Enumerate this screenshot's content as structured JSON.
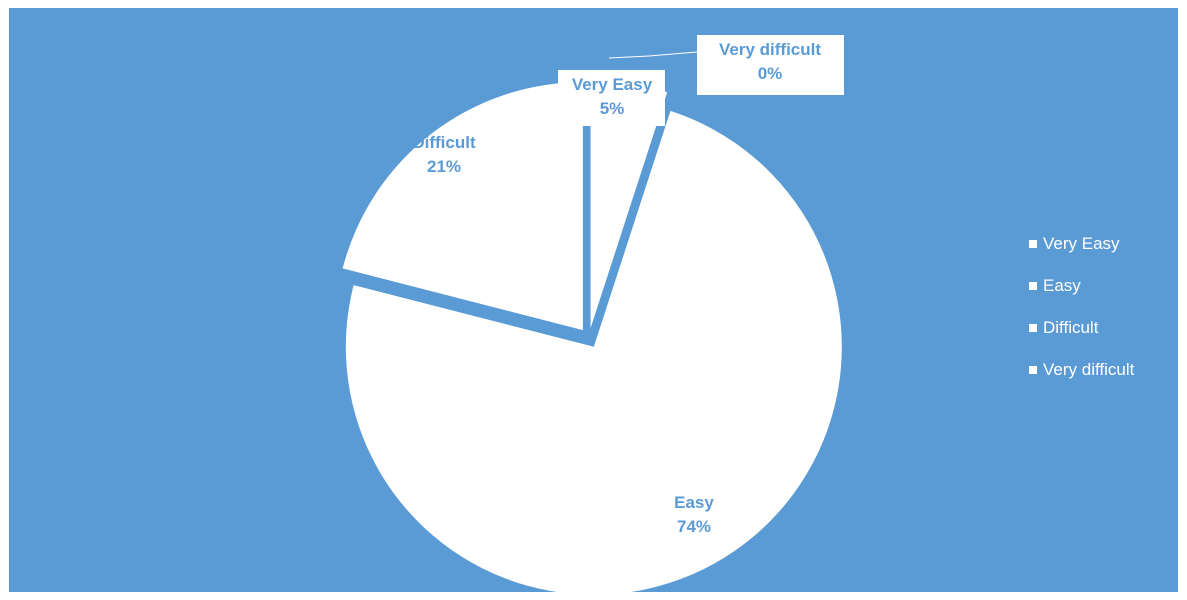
{
  "chart_data": {
    "type": "pie",
    "categories": [
      "Very Easy",
      "Easy",
      "Difficult",
      "Very difficult"
    ],
    "values": [
      5,
      74,
      21,
      0
    ],
    "data_labels": [
      {
        "category": "Very Easy",
        "value_text": "5%"
      },
      {
        "category": "Easy",
        "value_text": "74%"
      },
      {
        "category": "Difficult",
        "value_text": "21%"
      },
      {
        "category": "Very difficult",
        "value_text": "0%"
      }
    ],
    "exploded": true,
    "legend_position": "right",
    "colors": {
      "background": "#5b9bd5",
      "slice": "#ffffff",
      "label_text": "#5b9bd5",
      "legend_text": "#ffffff"
    }
  }
}
